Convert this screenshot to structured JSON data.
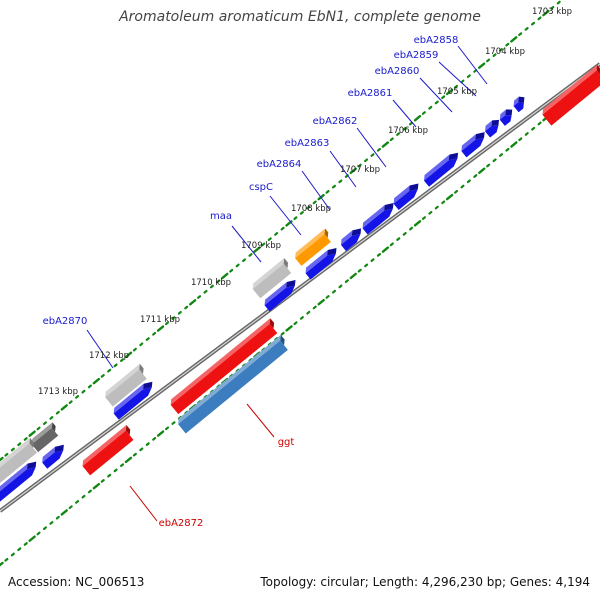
{
  "title": "Aromatoleum aromaticum EbN1, complete genome",
  "footer": {
    "accession": "Accession: NC_006513",
    "stats": "Topology: circular; Length: 4,296,230 bp; Genes: 4,194"
  },
  "colors": {
    "blue_gene": "#1414e6",
    "red_gene": "#ee1111",
    "gray_gene": "#bdbdbd",
    "dark_gray_gene": "#666666",
    "orange_gene": "#ff9900",
    "steelblue_gene": "#3b7dbf",
    "backbone": "#888888",
    "tick_green": "#118811",
    "label_blue": "#1a1acc",
    "label_red": "#cc0000"
  },
  "ruler_labels": [
    "1703 kbp",
    "1704 kbp",
    "1705 kbp",
    "1706 kbp",
    "1707 kbp",
    "1708 kbp",
    "1709 kbp",
    "1710 kbp",
    "1711 kbp",
    "1712 kbp",
    "1713 kbp"
  ],
  "gene_labels": [
    {
      "text": "ebA2858",
      "color": "blue"
    },
    {
      "text": "ebA2859",
      "color": "blue"
    },
    {
      "text": "ebA2860",
      "color": "blue"
    },
    {
      "text": "ebA2861",
      "color": "blue"
    },
    {
      "text": "ebA2862",
      "color": "blue"
    },
    {
      "text": "ebA2863",
      "color": "blue"
    },
    {
      "text": "ebA2864",
      "color": "blue"
    },
    {
      "text": "cspC",
      "color": "blue"
    },
    {
      "text": "maa",
      "color": "blue"
    },
    {
      "text": "ebA2870",
      "color": "blue"
    },
    {
      "text": "ggt",
      "color": "red"
    },
    {
      "text": "ebA2872",
      "color": "red"
    }
  ]
}
